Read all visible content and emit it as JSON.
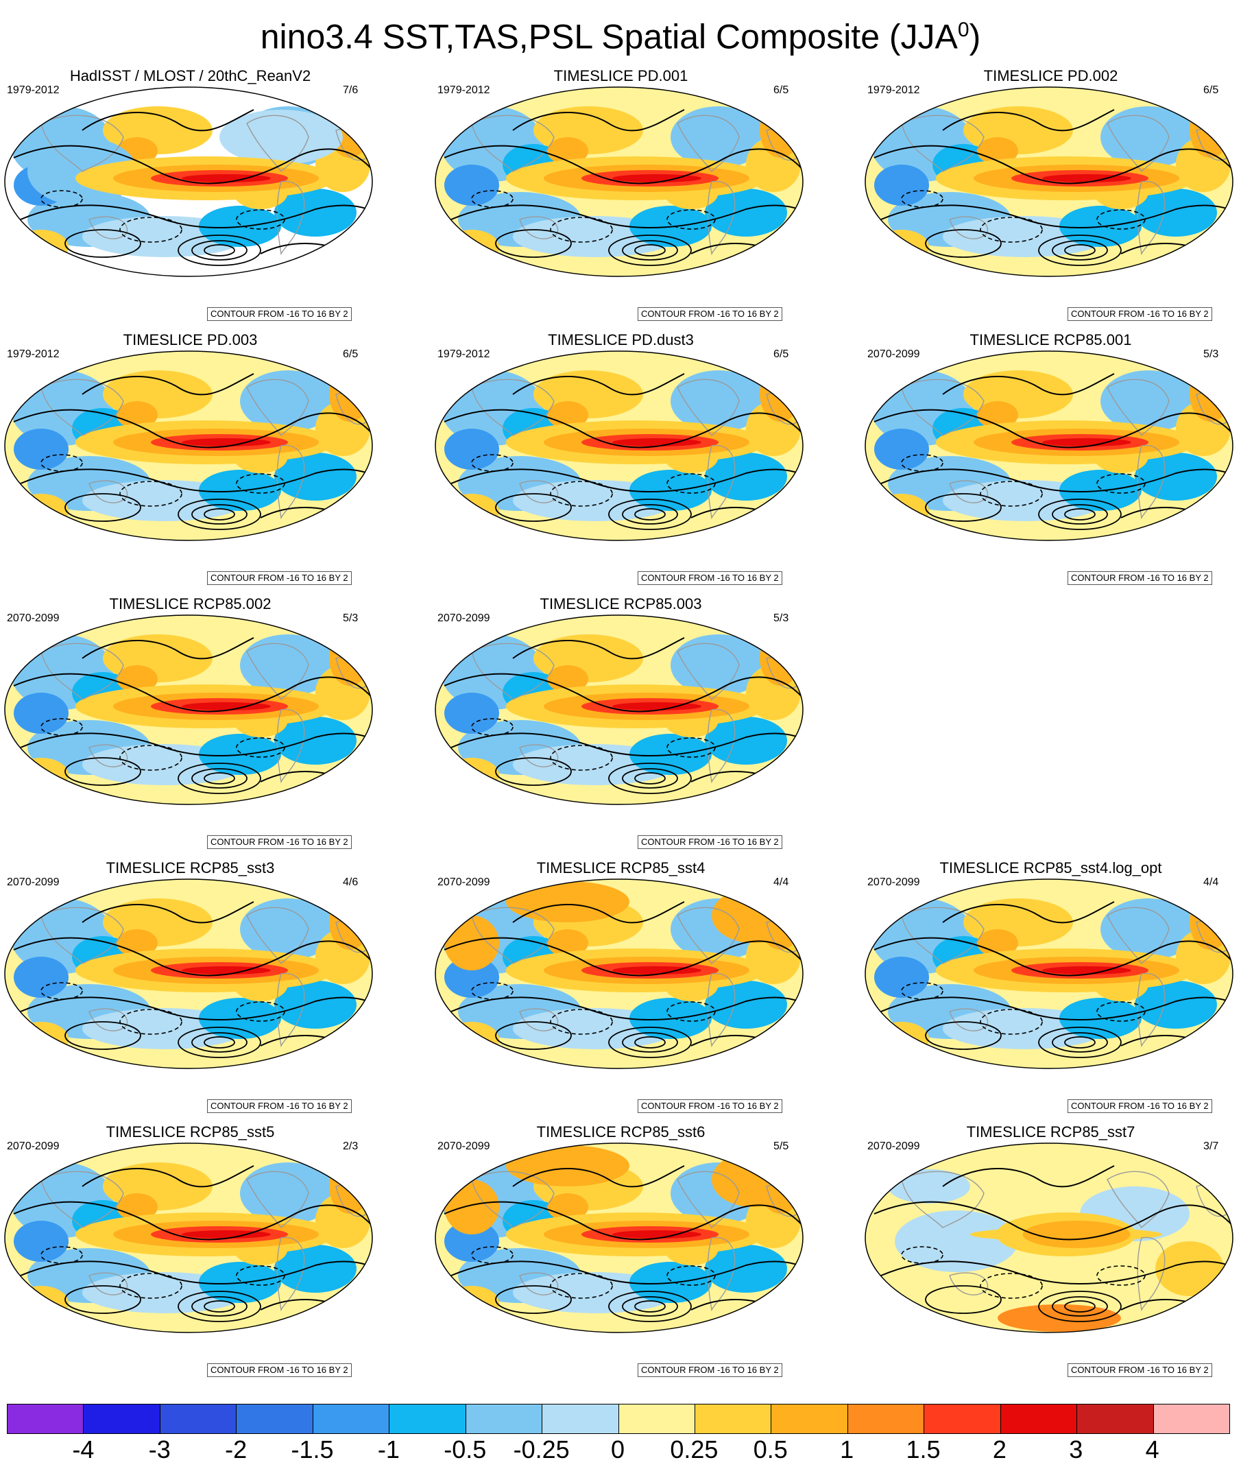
{
  "title": "nino3.4 SST,TAS,PSL Spatial Composite (JJA",
  "title_sup": "0",
  "title_end": ")",
  "contour_note": "CONTOUR FROM -16 TO 16 BY 2",
  "panels": [
    {
      "title": "HadISST / MLOST / 20thC_ReanV2",
      "left": "1979-2012",
      "right": "7/6",
      "style": "obs"
    },
    {
      "title": "TIMESLICE PD.001",
      "left": "1979-2012",
      "right": "6/5",
      "style": "model"
    },
    {
      "title": "TIMESLICE PD.002",
      "left": "1979-2012",
      "right": "6/5",
      "style": "model"
    },
    {
      "title": "TIMESLICE PD.003",
      "left": "1979-2012",
      "right": "6/5",
      "style": "model"
    },
    {
      "title": "TIMESLICE PD.dust3",
      "left": "1979-2012",
      "right": "6/5",
      "style": "model"
    },
    {
      "title": "TIMESLICE RCP85.001",
      "left": "2070-2099",
      "right": "5/3",
      "style": "model"
    },
    {
      "title": "TIMESLICE RCP85.002",
      "left": "2070-2099",
      "right": "5/3",
      "style": "model"
    },
    {
      "title": "TIMESLICE RCP85.003",
      "left": "2070-2099",
      "right": "5/3",
      "style": "model"
    },
    {
      "title": "TIMESLICE RCP85_sst3",
      "left": "2070-2099",
      "right": "4/6",
      "style": "model"
    },
    {
      "title": "TIMESLICE RCP85_sst4",
      "left": "2070-2099",
      "right": "4/4",
      "style": "warm"
    },
    {
      "title": "TIMESLICE RCP85_sst4.log_opt",
      "left": "2070-2099",
      "right": "4/4",
      "style": "model"
    },
    {
      "title": "TIMESLICE RCP85_sst5",
      "left": "2070-2099",
      "right": "2/3",
      "style": "model"
    },
    {
      "title": "TIMESLICE RCP85_sst6",
      "left": "2070-2099",
      "right": "5/5",
      "style": "warm"
    },
    {
      "title": "TIMESLICE RCP85_sst7",
      "left": "2070-2099",
      "right": "3/7",
      "style": "weak"
    }
  ],
  "colorbar": {
    "colors": [
      "#8a2be2",
      "#1e1ee6",
      "#2e4fe0",
      "#3277e6",
      "#3a9af0",
      "#12b6f0",
      "#7cc7f2",
      "#b4def5",
      "#fff49a",
      "#ffd23c",
      "#ffb01e",
      "#ff8c1e",
      "#ff3c1e",
      "#e60a0a",
      "#c81e1e",
      "#ffb4b4"
    ],
    "labels": [
      "-4",
      "-3",
      "-2",
      "-1.5",
      "-1",
      "-0.5",
      "-0.25",
      "0",
      "0.25",
      "0.5",
      "1",
      "1.5",
      "2",
      "3",
      "4"
    ]
  }
}
